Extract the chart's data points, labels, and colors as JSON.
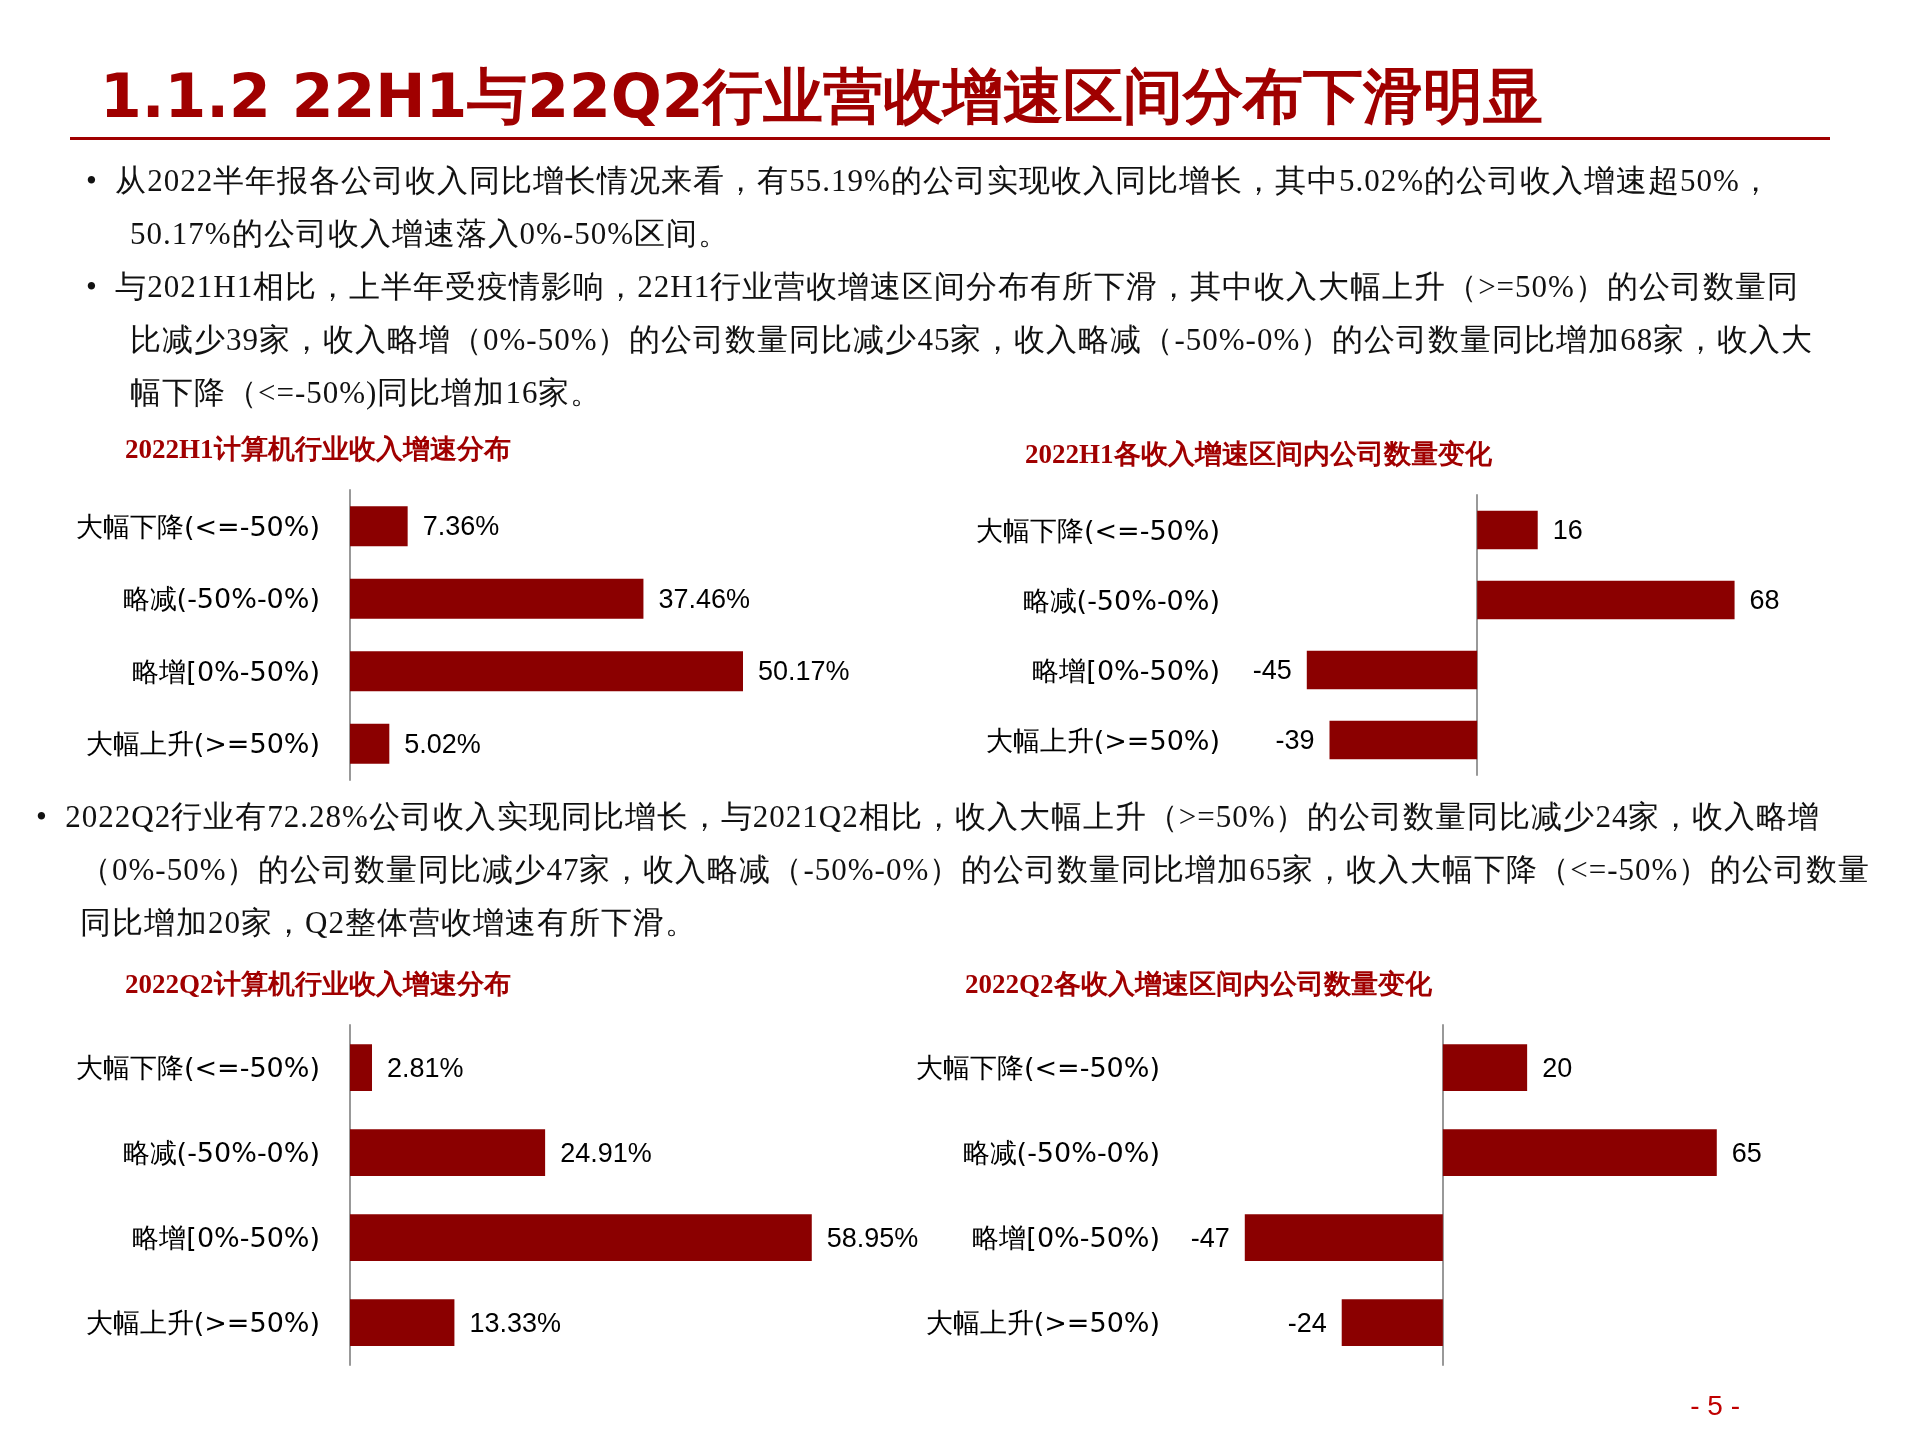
{
  "chart_data": [
    {
      "type": "other",
      "title": "1.1.2 22H1与22Q2行业营收增速区间分布下滑明显",
      "annotations": [
        "•  从2022半年报各公司收入同比增长情况来看，有55.19%的公司实现收入同比增长，其中5.02%的公司收入增速超50%，50.17%的公司收入增速落入0%-50%区间。",
        "•  与2021H1相比，上半年受疫情影响，22H1行业营收增速区间分布有所下滑，其中收入大幅上升（>=50%）的公司数量同比减少39家，收入略增（0%-50%）的公司数量同比减少45家，收入略减（-50%-0%）的公司数量同比增加68家，收入大幅下降（<=-50%)同比增加16家。"
      ]
    },
    {
      "type": "bar",
      "orientation": "horizontal",
      "title": "2022H1计算机行业收入增速分布",
      "categories": [
        "大幅下降(<=-50%)",
        "略减(-50%-0%)",
        "略增[0%-50%)",
        "大幅上升(>=50%)"
      ],
      "values": [
        7.36,
        37.46,
        50.17,
        5.02
      ],
      "value_labels": [
        "7.36%",
        "37.46%",
        "50.17%",
        "5.02%"
      ],
      "color": "#8b0000"
    },
    {
      "type": "bar",
      "orientation": "horizontal",
      "title": "2022H1各收入增速区间内公司数量变化",
      "categories": [
        "大幅下降(<=-50%)",
        "略减(-50%-0%)",
        "略增[0%-50%)",
        "大幅上升(>=50%)"
      ],
      "values": [
        16,
        68,
        -45,
        -39
      ],
      "data_labels": true,
      "color": "#8b0000"
    },
    {
      "type": "other",
      "annotations": [
        "•  2022Q2行业有72.28%公司收入实现同比增长，与2021Q2相比，收入大幅上升（>=50%）的公司数量同比减少24家，收入略增（0%-50%）的公司数量同比减少47家，收入略减（-50%-0%）的公司数量同比增加65家，收入大幅下降（<=-50%）的公司数量同比增加20家，Q2整体营收增速有所下滑。"
      ]
    },
    {
      "type": "bar",
      "orientation": "horizontal",
      "title": "2022Q2计算机行业收入增速分布",
      "categories": [
        "大幅下降(<=-50%)",
        "略减(-50%-0%)",
        "略增[0%-50%)",
        "大幅上升(>=50%)"
      ],
      "values": [
        2.81,
        24.91,
        58.95,
        13.33
      ],
      "value_labels": [
        "2.81%",
        "24.91%",
        "58.95%",
        "13.33%"
      ],
      "color": "#8b0000"
    },
    {
      "type": "bar",
      "orientation": "horizontal",
      "title": "2022Q2各收入增速区间内公司数量变化",
      "categories": [
        "大幅下降(<=-50%)",
        "略减(-50%-0%)",
        "略增[0%-50%)",
        "大幅上升(>=50%)"
      ],
      "values": [
        20,
        65,
        -47,
        -24
      ],
      "data_labels": true,
      "color": "#8b0000"
    },
    {
      "type": "other",
      "annotations": [
        "- 5 -"
      ]
    }
  ]
}
